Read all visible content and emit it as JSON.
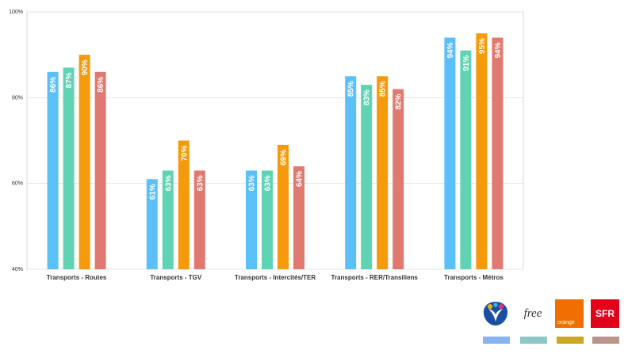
{
  "chart_data": {
    "type": "bar",
    "categories": [
      "Transports - Routes",
      "Transports - TGV",
      "Transports - Intercités/TER",
      "Transports - RER/Transiliens",
      "Transports - Métros"
    ],
    "series": [
      {
        "name": "Bouygues Telecom",
        "color": "#5bc0f8",
        "values": [
          86,
          61,
          63,
          85,
          94
        ]
      },
      {
        "name": "Free",
        "color": "#5fd3b4",
        "values": [
          87,
          63,
          63,
          83,
          91
        ]
      },
      {
        "name": "Orange",
        "color": "#f59a0c",
        "values": [
          90,
          70,
          69,
          85,
          95
        ]
      },
      {
        "name": "SFR",
        "color": "#e07a70",
        "values": [
          86,
          63,
          64,
          82,
          94
        ]
      }
    ],
    "value_suffix": "%",
    "ylim": [
      40,
      100
    ],
    "yticks": [
      "40%",
      "60%",
      "80%",
      "100%"
    ],
    "grid": true,
    "legend_placement": "bottom-right",
    "title": "",
    "xlabel": "",
    "ylabel": ""
  },
  "legend": {
    "items": [
      {
        "icon": "bouygues-telecom-logo-icon",
        "swatch": "#86b3f0"
      },
      {
        "icon": "free-logo-icon",
        "logo_text": "free",
        "swatch": "#8fc6c4"
      },
      {
        "icon": "orange-logo-icon",
        "logo_text": "orange",
        "swatch": "#c9a824"
      },
      {
        "icon": "sfr-logo-icon",
        "logo_text": "SFR",
        "swatch": "#b8958a"
      }
    ]
  }
}
